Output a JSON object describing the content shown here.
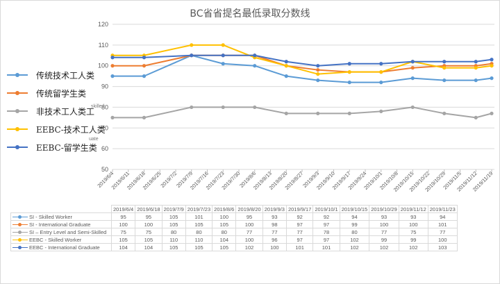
{
  "chart_data": {
    "type": "line",
    "title": "BC省省提名最低录取分数线",
    "xlabel": "",
    "ylabel": "",
    "ylim": [
      50,
      120
    ],
    "yticks": [
      50,
      60,
      70,
      80,
      90,
      100,
      110,
      120
    ],
    "grid": true,
    "legend_position": "left",
    "x_axis_ticks": [
      "2019/6/4",
      "2019/6/11",
      "2019/6/18",
      "2019/6/25",
      "2019/7/2",
      "2019/7/9",
      "2019/7/16",
      "2019/7/23",
      "2019/7/30",
      "2019/8/6",
      "2019/8/13",
      "2019/8/20",
      "2019/8/27",
      "2019/9/3",
      "2019/9/10",
      "2019/9/17",
      "2019/9/24",
      "2019/10/1",
      "2019/10/8",
      "2019/10/15",
      "2019/10/22",
      "2019/10/29",
      "2019/11/5",
      "2019/11/12",
      "2019/11/19"
    ],
    "categories": [
      "2019/6/4",
      "2019/6/18",
      "2019/7/9",
      "2019/7/23",
      "2019/8/6",
      "2019/8/20",
      "2019/9/3",
      "2019/9/17",
      "2019/10/1",
      "2019/10/15",
      "2019/10/29",
      "2019/11/12",
      "2019/11/23"
    ],
    "category_tick_index": [
      0,
      2,
      5,
      7,
      9,
      11,
      13,
      15,
      17,
      19,
      21,
      23,
      24
    ],
    "series": [
      {
        "name": "SI - Skilled Worker",
        "legend_cn": "传统技术工人类",
        "color": "#5b9bd5",
        "values": [
          95,
          95,
          105,
          101,
          100,
          95,
          93,
          92,
          92,
          94,
          93,
          93,
          94
        ]
      },
      {
        "name": "SI - International Graduate",
        "legend_cn": "传统留学生类",
        "color": "#ed7d31",
        "values": [
          100,
          100,
          105,
          105,
          105,
          100,
          98,
          97,
          97,
          99,
          100,
          100,
          101
        ]
      },
      {
        "name": "SI – Entry Level and Semi-Skilled",
        "legend_cn": "非技术工人类工",
        "color": "#a5a5a5",
        "values": [
          75,
          75,
          80,
          80,
          80,
          77,
          77,
          77,
          78,
          80,
          77,
          75,
          77
        ]
      },
      {
        "name": "EEBC - Skilled Worker",
        "legend_cn": "EEBC-技术工人类",
        "color": "#ffc000",
        "values": [
          105,
          105,
          110,
          110,
          104,
          100,
          96,
          97,
          97,
          102,
          99,
          99,
          100
        ]
      },
      {
        "name": "EEBC - International Graduate",
        "legend_cn": "EEBC-留学生类",
        "color": "#4472c4",
        "values": [
          104,
          104,
          105,
          105,
          105,
          102,
          100,
          101,
          101,
          102,
          102,
          102,
          103
        ]
      }
    ]
  },
  "legend": {
    "items": [
      {
        "label": "传统技术工人类",
        "color": "#5b9bd5"
      },
      {
        "label": "传统留学生类",
        "color": "#ed7d31"
      },
      {
        "label": "非技术工人类工",
        "color": "#a5a5a5"
      },
      {
        "label": "EEBC-技术工人类",
        "color": "#ffc000"
      },
      {
        "label": "EEBC-留学生类",
        "color": "#4472c4"
      }
    ],
    "ghost_texts": [
      "skilled",
      "uate"
    ]
  },
  "data_table": {
    "headers": [
      "2019/6/4",
      "2019/6/18",
      "2019/7/9",
      "2019/7/23",
      "2019/8/6",
      "2019/8/20",
      "2019/9/3",
      "2019/9/17",
      "2019/10/1",
      "2019/10/15",
      "2019/10/29",
      "2019/11/12",
      "2019/11/23"
    ],
    "rows": [
      {
        "label": "SI - Skilled Worker",
        "color": "#5b9bd5",
        "values": [
          "95",
          "95",
          "105",
          "101",
          "100",
          "95",
          "93",
          "92",
          "92",
          "94",
          "93",
          "93",
          "94"
        ]
      },
      {
        "label": "SI - International Graduate",
        "color": "#ed7d31",
        "values": [
          "100",
          "100",
          "105",
          "105",
          "105",
          "100",
          "98",
          "97",
          "97",
          "99",
          "100",
          "100",
          "101"
        ]
      },
      {
        "label": "SI – Entry Level and Semi-Skilled",
        "color": "#a5a5a5",
        "values": [
          "75",
          "75",
          "80",
          "80",
          "80",
          "77",
          "77",
          "77",
          "78",
          "80",
          "77",
          "75",
          "77"
        ]
      },
      {
        "label": "EEBC - Skilled Worker",
        "color": "#ffc000",
        "values": [
          "105",
          "105",
          "110",
          "110",
          "104",
          "100",
          "96",
          "97",
          "97",
          "102",
          "99",
          "99",
          "100"
        ]
      },
      {
        "label": "EEBC - International Graduate",
        "color": "#4472c4",
        "values": [
          "104",
          "104",
          "105",
          "105",
          "105",
          "102",
          "100",
          "101",
          "101",
          "102",
          "102",
          "102",
          "103"
        ]
      }
    ]
  }
}
